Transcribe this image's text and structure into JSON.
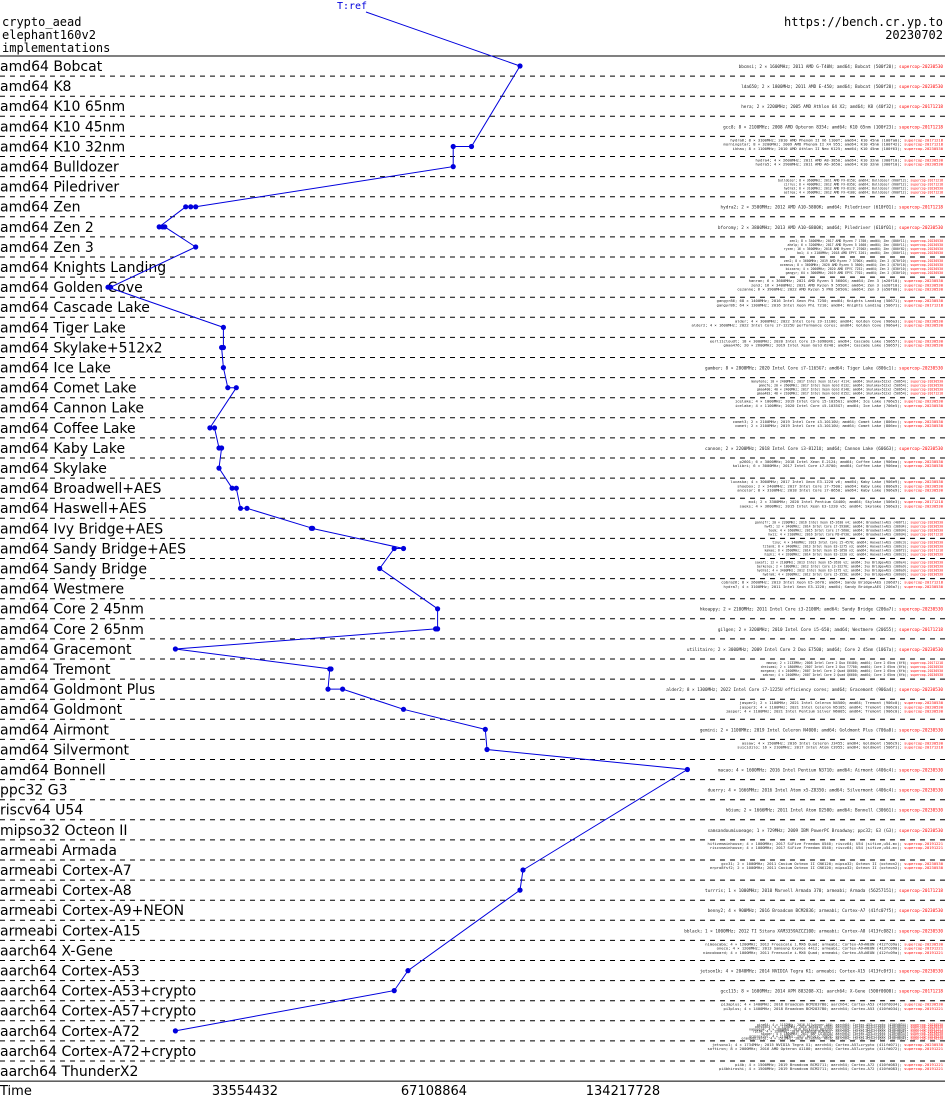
{
  "header": {
    "line1": "crypto_aead",
    "line2": "elephant160v2",
    "line3": "implementations",
    "url": "https://bench.cr.yp.to",
    "date": "20230702"
  },
  "colors": {
    "series": "#0000dd",
    "grid": "#000000",
    "version": "#ff0000"
  },
  "chart_data": {
    "type": "line",
    "title": "",
    "xlabel": "Time",
    "x_scale": "log2",
    "xlim": [
      8388608,
      268435456
    ],
    "xticks": [
      33554432,
      67108864,
      134217728
    ],
    "xtick_labels": [
      "33554432",
      "67108864",
      "134217728"
    ],
    "top_label": "T:ref",
    "categories": [
      "amd64 Bobcat",
      "amd64 K8",
      "amd64 K10 65nm",
      "amd64 K10 45nm",
      "amd64 K10 32nm",
      "amd64 Bulldozer",
      "amd64 Piledriver",
      "amd64 Zen",
      "amd64 Zen 2",
      "amd64 Zen 3",
      "amd64 Knights Landing",
      "amd64 Golden Cove",
      "amd64 Cascade Lake",
      "amd64 Tiger Lake",
      "amd64 Skylake+512x2",
      "amd64 Ice Lake",
      "amd64 Comet Lake",
      "amd64 Cannon Lake",
      "amd64 Coffee Lake",
      "amd64 Kaby Lake",
      "amd64 Skylake",
      "amd64 Broadwell+AES",
      "amd64 Haswell+AES",
      "amd64 Ivy Bridge+AES",
      "amd64 Sandy Bridge+AES",
      "amd64 Sandy Bridge",
      "amd64 Westmere",
      "amd64 Core 2 45nm",
      "amd64 Core 2 65nm",
      "amd64 Gracemont",
      "amd64 Tremont",
      "amd64 Goldmont Plus",
      "amd64 Goldmont",
      "amd64 Airmont",
      "amd64 Silvermont",
      "amd64 Bonnell",
      "ppc32 G3",
      "riscv64 U54",
      "mipso32 Octeon II",
      "armeabi Armada",
      "armeabi Cortex-A7",
      "armeabi Cortex-A8",
      "armeabi Cortex-A9+NEON",
      "armeabi Cortex-A15",
      "aarch64 X-Gene",
      "aarch64 Cortex-A53",
      "aarch64 Cortex-A53+crypto",
      "aarch64 Cortex-A57+crypto",
      "aarch64 Cortex-A72",
      "aarch64 Cortex-A72+crypto",
      "aarch64 ThunderX2"
    ],
    "series": [
      {
        "name": "T:ref",
        "points": [
          {
            "cat": 0,
            "x": 92000000
          },
          {
            "cat": 4,
            "x": 77000000
          },
          {
            "cat": 4,
            "x": 72000000
          },
          {
            "cat": 5,
            "x": 72000000
          },
          {
            "cat": 7,
            "x": 28000000
          },
          {
            "cat": 7,
            "x": 27500000
          },
          {
            "cat": 7,
            "x": 27000000
          },
          {
            "cat": 8,
            "x": 24500000
          },
          {
            "cat": 8,
            "x": 24800000
          },
          {
            "cat": 8,
            "x": 25000000
          },
          {
            "cat": 9,
            "x": 28000000
          },
          {
            "cat": 11,
            "x": 20500000
          },
          {
            "cat": 11,
            "x": 20300000
          },
          {
            "cat": 13,
            "x": 31000000
          },
          {
            "cat": 14,
            "x": 31000000
          },
          {
            "cat": 14,
            "x": 30800000
          },
          {
            "cat": 15,
            "x": 31000000
          },
          {
            "cat": 16,
            "x": 31500000
          },
          {
            "cat": 16,
            "x": 32500000
          },
          {
            "cat": 18,
            "x": 29500000
          },
          {
            "cat": 18,
            "x": 30000000
          },
          {
            "cat": 19,
            "x": 30500000
          },
          {
            "cat": 19,
            "x": 30800000
          },
          {
            "cat": 20,
            "x": 30500000
          },
          {
            "cat": 21,
            "x": 32000000
          },
          {
            "cat": 21,
            "x": 32500000
          },
          {
            "cat": 22,
            "x": 33000000
          },
          {
            "cat": 22,
            "x": 33800000
          },
          {
            "cat": 23,
            "x": 43000000
          },
          {
            "cat": 23,
            "x": 42800000
          },
          {
            "cat": 24,
            "x": 60000000
          },
          {
            "cat": 24,
            "x": 58000000
          },
          {
            "cat": 25,
            "x": 55000000
          },
          {
            "cat": 27,
            "x": 68000000
          },
          {
            "cat": 28,
            "x": 68000000
          },
          {
            "cat": 28,
            "x": 67800000
          },
          {
            "cat": 28,
            "x": 67500000
          },
          {
            "cat": 29,
            "x": 26000000
          },
          {
            "cat": 30,
            "x": 46000000
          },
          {
            "cat": 30,
            "x": 45800000
          },
          {
            "cat": 31,
            "x": 45500000
          },
          {
            "cat": 31,
            "x": 48000000
          },
          {
            "cat": 32,
            "x": 60000000
          },
          {
            "cat": 33,
            "x": 81000000
          },
          {
            "cat": 34,
            "x": 81500000
          },
          {
            "cat": 35,
            "x": 170000000
          },
          {
            "cat": 40,
            "x": 93000000
          },
          {
            "cat": 41,
            "x": 92000000
          },
          {
            "cat": 45,
            "x": 61000000
          },
          {
            "cat": 46,
            "x": 58000000
          },
          {
            "cat": 48,
            "x": 26000000
          }
        ]
      }
    ],
    "row_notes": [
      [
        "bbcmsi; 2 × 1600MHz; 2011 AMD G-T40N; amd64; Bobcat (500f20); supercop-20230530"
      ],
      [
        "lda650; 2 × 1800MHz; 2011 AMD E-450; amd64; Bobcat (500f20); supercop-20230530"
      ],
      [
        "hera; 2 × 2200MHz; 2005 AMD Athlon 64 X2; amd64; K8 (40f32); supercop-20171218"
      ],
      [
        "gcc8; 8 × 2100MHz; 2008 AMD Opteron 8354; amd64; K10 65nm (100f23); supercop-20171218"
      ],
      [
        "hydra6; 8 × 3100MHz; 2010 AMD Phenom II X6 1100T; amd64; K10 45nm (100fa0); supercop-20171218",
        "morningstar; 8 × 3200MHz; 2009 AMD Phenom II X4 955; amd64; K10 45nm (100f42); supercop-20171218",
        "ikhau; 8 × 1100MHz; 2010 AMD Athlon II Neo K125; amd64; K10 45nm (100f63); supercop-20230530"
      ],
      [
        "hydra4; 4 × 2600MHz; 2011 AMD A8-3850; amd64; K10 32nm (300f10); supercop-20230530",
        "hydra5; 4 × 2900MHz; 2011 AMD A6-3650; amd64; K10 32nm (300f10); supercop-20230530"
      ],
      [
        "bulldozer; 8 × 3600MHz; 2011 AMD FX-8150; amd64; Bulldozer (600f12); supercop-20171218",
        "cirrus; 8 × 4000MHz; 2012 AMD FX-8350; amd64; Bulldozer (600f12); supercop-20171218",
        "hydra3; 8 × 3100MHz; 2012 AMD FX-8120; amd64; Bulldozer (600f12); supercop-20230530",
        "astrea; 4 × 3600MHz; 2012 AMD FX-4100; amd64; Bulldozer (600f12); supercop-20171218"
      ],
      [
        "hydra2; 2 × 3500MHz; 2012 AMD A10-5800K; amd64; Piledriver (610f01); supercop-20171218"
      ],
      [
        "bforomy; 2 × 3800MHz; 2013 AMD A10-6800K; amd64; Piledriver (610f01); supercop-20230530"
      ],
      [
        "zen1; 8 × 3400MHz; 2017 AMD Ryzen 7 1700; amd64; Zen (800f11); supercop-20230530",
        "ahelp; 6 × 3200MHz; 2017 AMD Ryzen 5 1600; amd64; Zen (800f11); supercop-20230530",
        "ryzen; 16 × 3600MHz; 2018 AMD Ryzen 7 2700X; amd64; Zen (800f82); supercop-20230530",
        "bo1; 4 × 2100MHz; 2018 AMD EPYC 3201; amd64; Zen (800f11); supercop-20230530"
      ],
      [
        "zen2; 8 × 3600MHz; 2019 AMD Ryzen 7 3700X; amd64; Zen 2 (870f10); supercop-20230530",
        "oceanus; 8 × 3600MHz; 2020 AMD Ryzen 5 3600; amd64; Zen 2 (870f10); supercop-20230530",
        "bizzaro; 4 × 2000MHz; 2020 AMD EPYC 7252; amd64; Zen 2 (830f10); supercop-20230530",
        "gangyr; 64 × 3000MHz; 2019 AMD EPYC 7702; amd64; Zen 2 (830f10); supercop-20230530"
      ],
      [
        "hanran; 6 × 3600MHz; 2021 AMD Ryzen 5 5600X; amd64; Zen 3 (a20f10); supercop-20230530",
        "zen3; 16 × 3400MHz; 2021 AMD Ryzen 9 5950X; amd64; Zen 3 (a20f10); supercop-20230530",
        "cezanne; 6 × 3900MHz; 2022 AMD Ryzen 5 PRO 5650G; amd64; Zen 3 (a50f00); supercop-20230530"
      ],
      [
        "gangyr86; 68 × 1400MHz; 2016 Intel Xeon Phi 7250; amd64; Knights Landing (50671); supercop-20230530",
        "gangyr86; 64 × 1300MHz; 2016 Intel Xeon Phi 7210; amd64; Knights Landing (50671); supercop-20171218"
      ],
      [
        "alder; 4 × 3000MHz; 2022 Intel Core i9-11100; amd64; Golden Cove (906a3); supercop-20230530",
        "alder2; 4 × 1600MHz; 2022 Intel Core i7-1225U performance cores; amd64; Golden Cove (906a4); supercop-20230530"
      ],
      [
        "eerl11cloudt; 18 × 3000MHz; 2020 Intel Core i9-10980XE; amd64; Cascade Lake (50657); supercop-20230530",
        "gmaa476; 20 × 2600MHz; 2019 Intel Xeon Gold 6248; amd64; Cascade Lake (50657); supercop-20230530"
      ],
      [
        "gamber; 8 × 2800MHz; 2020 Intel Core i7-1165G7; amd64; Tiger Lake (806c1); supercop-20230530"
      ],
      [
        "manyhole; 10 × 2400MHz; 2017 Intel Xeon Silver 4114; amd64; Skylake+512x2 (50654); supercop-20230530",
        "pmmcfe; 20 × 2600MHz; 2017 Intel Xeon Gold 6132; amd64; Skylake+512x2 (50654); supercop-20230530",
        "gmaa400; 40 × 2400MHz; 2017 Intel Xeon Gold 6148; amd64; Skylake+512x2 (50654); supercop-20230530",
        "gmaa483; 48 × 2100MHz; 2017 Intel Xeon Gold 6152; amd64; Skylake+512x2 (50654); supercop-20171218"
      ],
      [
        "icelake; 4 × 1000MHz; 2019 Intel Core i5-1035G1; amd64; Ice Lake (706e5); supercop-20230530",
        "icelake; 4 × 1100MHz; 2020 Intel Core i5-1035G7; amd64; Ice Lake (706e5); supercop-20230530"
      ],
      [
        "comet3; 2 × 2100MHz; 2019 Intel Core i3-10110U; amd64; Comet Lake (806ec); supercop-20230530",
        "comet; 2 × 2100MHz; 2019 Intel Core i3-10110U; amd64; Comet Lake (806ec); supercop-20230530"
      ],
      [
        "cannon; 2 × 2200MHz; 2018 Intel Core i3-8121U; amd64; Cannon Lake (60663); supercop-20230530"
      ],
      [
        "p2601; 6 × 3000MHz; 2018 Intel Xeon E-2124; amd64; Coffee Lake (906ea); supercop-20230530",
        "kolibri; 6 × 3000MHz; 2017 Intel Core i7-8700; amd64; Coffee Lake (906ea); supercop-20230530"
      ],
      [
        "lucaska; 4 × 3000MHz; 2017 Intel Xeon E3-1220 v6; amd64; Kaby Lake (906e9); supercop-20230530",
        "shoebox; 2 × 2400MHz; 2017 Intel Core i7-7500; amd64; Kaby Lake (806e9); supercop-20230530",
        "ancelor; 8 × 3100MHz; 2018 Intel Core i7-8650; amd64; Kaby Lake (906e9); supercop-20230530"
      ],
      [
        "mx4; 2 × 3300MHz; 2020 Intel Pentium G4400; amd64; Skylake (506e3); supercop-20171218",
        "saeks; 4 × 3600MHz; 2015 Intel Xeon E3-1220 v5; amd64; Skylake (506e3); supercop-20230530"
      ],
      [
        "gannjfr; 20 × 2200MHz; 2016 Intel Xeon E5-2630 v4; amd64; Broadwell+AES (406f1); supercop-20230530",
        "hw45; 12 × 3400MHz; 2014 Intel Core i7-5930K; amd64; Broadwell+AES (306d4); supercop-20230530",
        "teem; 4 × 1600MHz; 2015 Intel Core i7-5600; amd64; Broadwell+AES (306d4); supercop-20230530",
        "hw11; 4 × 2100MHz; 2016 Intel Core M3-6Y30; amd64; Broadwell+AES (306d4); supercop-20171218"
      ],
      [
        "tiny; 4 × 3400MHz; 2013 Intel Core i5-4570; amd64; Haswell+AES (306c3); supercop-20230530",
        "titan0; 8 × 3400MHz; 2013 Intel Xeon E3-1275 v3; amd64; Haswell+AES (306c3); supercop-20230530",
        "kakao; 6 × 3500MHz; 2014 Intel Xeon E5-1650 v3; amd64; Haswell+AES (306f2); supercop-20171218",
        "hiphi; 4 × 3200MHz; 2014 Intel Xeon E3-1220 v3; amd64; Haswell+AES (306c3); supercop-20230530"
      ],
      [
        "saxafi; 12 × 2100MHz; 2013 Intel Xeon E5-2620 v2; amd64; Ivy Bridge+AES (306e4); supercop-20230530",
        "berkeley; 2 × 1800MHz; 2012 Intel Core i3-3227U; amd64; Ivy Bridge+AES (306a9); supercop-20230530",
        "hydra1; 4 × 3400MHz; 2012 Intel Xeon E3-1275 v2; amd64; Ivy Bridge+AES (306a9); supercop-20230530",
        "hydra0; 4 × 3300MHz; 2012 Intel Core i5-3550; amd64; Ivy Bridge+AES (306a9); supercop-20230530"
      ],
      [
        "cobra26; 8 × 2600MHz; 2013 Intel Xeon E5-2670; amd64; Sandy Bridge+AES (206d7); supercop-20171218",
        "hydra7; 4 × 3100MHz; 2011 Intel Xeon E3-1220; amd64; Sandy Bridge+AES (206a7); supercop-20230530"
      ],
      [
        "hkoappy; 2 × 2100MHz; 2011 Intel Core i3-2100M; amd64; Sandy Bridge (206a7); supercop-20230530"
      ],
      [
        "gilgen; 2 × 3200MHz; 2010 Intel Core i5-650; amd64; Westmere (20655); supercop-20171218"
      ],
      [
        "utilitaire; 2 × 3000MHz; 2009 Intel Core 2 Duo E7500; amd64; Core 2 45nm (1067a); supercop-20230530"
      ],
      [
        "mmxsa; 2 × 2133MHz; 2008 Intel Core 2 Duo E6400; amd64; Core 2 65nm (6f6); supercop-20171218",
        "dreisami; 2 × 1800MHz; 2007 Intel Core 2 Duo T7700; amd64; Core 2 65nm (6fb); supercop-20230530",
        "morgana; 4 × 2400MHz; 2007 Intel Core 2 Quad Q6600; amd64; Core 2 65nm (6fb); supercop-20230530",
        "sebron; 4 × 2400MHz; 2007 Intel Core 2 Quad Q6600; amd64; Core 2 65nm (6fb); supercop-20230530"
      ],
      [
        "alder2; 8 × 1300MHz; 2022 Intel Core i7-1225U efficiency cores; amd64; Gracemont (906a4); supercop-20230530"
      ],
      [
        "jasper2; 2 × 1100MHz; 2021 Intel Celeron N4500; amd64; Tremont (906c0); supercop-20230530",
        "jasper3; 4 × 1100MHz; 2021 Intel Celeron N5105; amd64; Tremont (906c0); supercop-20230530",
        "jasper; 4 × 1100MHz; 2021 Intel Pentium Silver N6005; amd64; Tremont (906c0); supercop-20230530"
      ],
      [
        "gemini; 2 × 1100MHz; 2019 Intel Celeron N4000; amd64; Goldmont Plus (706a8); supercop-20230530"
      ],
      [
        "assaw; 4 × 1500MHz; 2016 Intel Celeron J3455; amd64; Goldmont (506c9); supercop-20230530",
        "suicidilo; 16 × 2100MHz; 2017 Intel Atom C3955; amd64; Goldmont (506f1); supercop-20171218"
      ],
      [
        "macao; 4 × 1600MHz; 2016 Intel Pentium N3710; amd64; Airmont (406c4); supercop-20230530"
      ],
      [
        "duerry; 4 × 1666MHz; 2016 Intel Atom x5-Z8350; amd64; Silvermont (406c4); supercop-20230530"
      ],
      [
        "h6ium; 2 × 1666MHz; 2011 Intel Atom D2500; amd64; Bonnell (30661); supercop-20230530"
      ],
      [
        "samsandoumiuoeage; 1 × 729MHz; 2009 IBM PowerPC Broadway; ppc32; G3 (G3); supercop-20230530"
      ],
      [
        "hifivemainhouse; 4 × 1000MHz; 2017 SiFive Freedom U540; riscv64; U54 (sifive,u54-mc); supercop-20191221",
        "riscvmainhouse; 4 × 1000MHz; 2017 SiFive Freedom U540; riscv64; U54 (sifive,u54-mc); supercop-20191221"
      ],
      [
        "gcc31; 2 × 1000MHz; 2011 Cavium Octeon II CN6120; mipso32; Octeon II (octeon2); supercop-20230530",
        "erpro8fsf2; 2 × 1000MHz; 2011 Cavium Octeon II CN6120; mipso32; Octeon II (octeon2); supercop-20230530"
      ],
      [
        "turrris; 1 × 1000MHz; 2010 Marvell Armada 370; armeabi; Armada (56257151); supercop-20171218"
      ],
      [
        "benny2; 4 × 900MHz; 2016 Broadcom BCM2836; armeabi; Cortex-A7 (41fc07f5); supercop-20230530"
      ],
      [
        "bblack; 1 × 1000MHz; 2012 TI Sitara XAM3359AZCZ100; armeabi; Cortex-A8 (413fc082); supercop-20230530"
      ],
      [
        "nimoacaba; 4 × 1200MHz; 2012 Freescale i.MX6 Quad; armeabi; Cortex-A9+NEON (412fc09a); supercop-20230530",
        "oneco; 4 × 1200MHz; 2013 Samsung Exynos 4412; armeabi; Cortex-A9+NEON (413fc090); supercop-20191221",
        "nimcoboard; 4 × 1000MHz; 2011 Freescale i.MX6 Quad; armeabi; Cortex-A9+NEON (412fc09a); supercop-20191221"
      ],
      [
        "jetson1k; 4 × 2040MHz; 2014 NVIDIA Tegra K1; armeabi; Cortex-A15 (413fc0f3); supercop-20230530"
      ],
      [
        "gcc115; 8 × 1600MHz; 2014 APM 883208-X1; aarch64; X-Gene (500f0000); supercop-20171218"
      ],
      [
        "pi3aplus; 4 × 1400MHz; 2018 Broadcom BCM2837B0; aarch64; Cortex-A53 (410fd034); supercop-20230530",
        "pi3plus; 4 × 1400MHz; 2018 Broadcom BCM2837B0; aarch64; Cortex-A53 (410fd034); supercop-20191221"
      ],
      [
        "pine64; 4 × 1152MHz; 2016 Allwinner A64; aarch64; Cortex-A53+crypto (410fd034); supercop-20230530",
        "odroidc2; 4 × 1536MHz; 2016 Amlogic S905; aarch64; Cortex-A53+crypto (410fd034); supercop-20230530",
        "nanopim4; 4 × 1800MHz; 2018 Rockchip RK3399; aarch64; Cortex-A53+crypto (410fd034); supercop-20191221",
        "rpi64; 4 × 1200MHz; 2016 Broadcom BCM2837; aarch64; Cortex-A53+crypto (410fd034); supercop-20230530",
        "hipper; 4 × 1800MHz; 2017 NXP LS1043A; aarch64; Cortex-A53+crypto (410fd034); supercop-20230530",
        "gcgsnsxcwl; 4 × 1100MHz; 2017 Amlogic S905X; aarch64; Cortex-A53+crypto (410fd034); supercop-20230530",
        "orangepizero2; 4 × 1512MHz; 2020 Allwinner H616; aarch64; Cortex-A53+crypto (410fd034); supercop-20230530"
      ],
      [
        "jetsonx1; 4 × 1734MHz; 2015 NVIDIA Tegra X1; aarch64; Cortex-A57+crypto (411fd071); supercop-20230530",
        "softiron; 8 × 2000MHz; 2016 AMD Opteron A1100; aarch64; Cortex-A57+crypto (411fd072); supercop-20191221"
      ],
      [
        "pi4b; 4 × 1500MHz; 2019 Broadcom BCM2711; aarch64; Cortex-A72 (410fd083); supercop-20191221",
        "pi4bhiroshi; 4 × 1500MHz; 2019 Broadcom BCM2711; aarch64; Cortex-A72 (410fd083); supercop-20191221"
      ],
      [
        "a72; 2 × 2100MHz; 2016 Mediatek MT8173; aarch64; Cortex-A72+crypto (410fd080); supercop-20171218"
      ],
      [
        "pwcrlr8; 64 × 2500MHz; 2018 Cavium ThunderX2 CN9980; aarch64; ThunderX2 (431f0af1); supercop-20171218"
      ]
    ]
  }
}
